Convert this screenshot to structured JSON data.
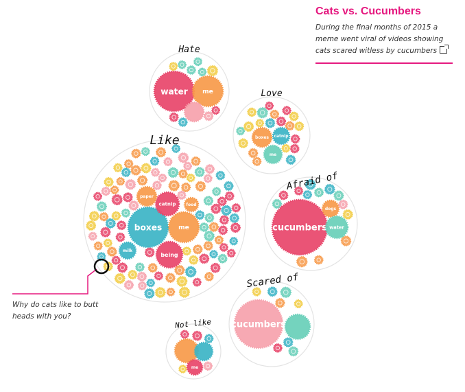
{
  "header": {
    "title": "Cats vs. Cucumbers",
    "subtitle": "During the final months of 2015 a meme went viral of videos showing cats scared witless by cucumbers",
    "link_icon": "external-link-icon"
  },
  "annotation": {
    "text": "Why do cats like to butt heads with you?"
  },
  "colors": {
    "pink": "#e8456a",
    "orange": "#f79a4a",
    "teal": "#3cb4c6",
    "light_pink": "#f6a2ad",
    "mint": "#68cfb9",
    "yellow": "#f2cd45",
    "accent": "#e5187f"
  },
  "clusters": [
    {
      "label": "Hate",
      "bubbles": [
        {
          "text": "water",
          "color": "pink"
        },
        {
          "text": "me",
          "color": "orange"
        },
        {
          "text": "",
          "color": "light_pink"
        }
      ]
    },
    {
      "label": "Love",
      "bubbles": [
        {
          "text": "boxes",
          "color": "orange"
        },
        {
          "text": "catnip",
          "color": "teal"
        },
        {
          "text": "me",
          "color": "mint"
        }
      ]
    },
    {
      "label": "Like",
      "bubbles": [
        {
          "text": "boxes",
          "color": "teal"
        },
        {
          "text": "me",
          "color": "orange"
        },
        {
          "text": "catnip",
          "color": "pink"
        },
        {
          "text": "being",
          "color": "pink"
        },
        {
          "text": "paper",
          "color": "orange"
        },
        {
          "text": "food",
          "color": "orange"
        },
        {
          "text": "milk",
          "color": "teal"
        }
      ]
    },
    {
      "label": "Afraid of",
      "bubbles": [
        {
          "text": "cucumbers",
          "color": "pink"
        },
        {
          "text": "dogs",
          "color": "orange"
        },
        {
          "text": "water",
          "color": "mint"
        }
      ]
    },
    {
      "label": "Scared of",
      "bubbles": [
        {
          "text": "cucumbers",
          "color": "light_pink"
        },
        {
          "text": "",
          "color": "mint"
        }
      ]
    },
    {
      "label": "Not like",
      "bubbles": [
        {
          "text": "",
          "color": "orange"
        },
        {
          "text": "",
          "color": "teal"
        },
        {
          "text": "me",
          "color": "pink"
        }
      ]
    }
  ]
}
